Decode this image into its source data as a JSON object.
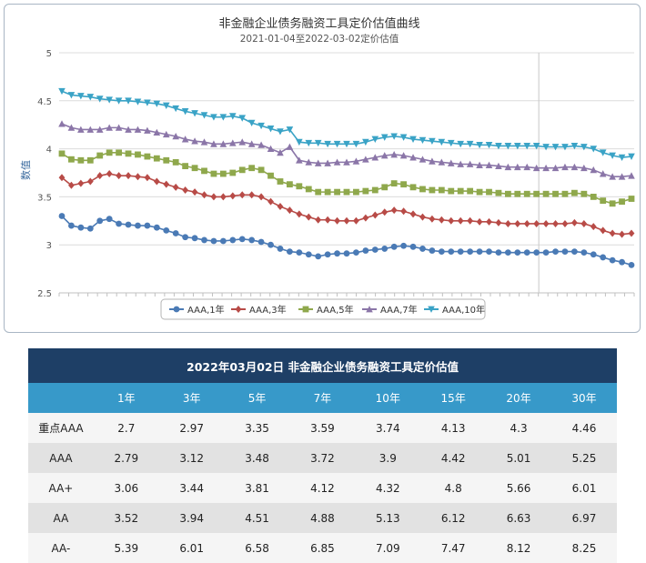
{
  "chart_data": {
    "type": "line",
    "title": "非金融企业债务融资工具定价估值曲线",
    "subtitle": "2021-01-04至2022-03-02定价估值",
    "xlabel": "",
    "ylabel": "数值",
    "ylim": [
      2.5,
      5
    ],
    "yticks": [
      2.5,
      3,
      3.5,
      4,
      4.5,
      5
    ],
    "grid": true,
    "legend": "bottom",
    "x_start": "2021-01-04",
    "x_end": "2022-03-02",
    "x_tick_count": 60,
    "cursor_x": "2021-12-22",
    "series": [
      {
        "name": "AAA,1年",
        "color": "#4a7ab5",
        "marker": "circle",
        "values": [
          3.3,
          3.2,
          3.18,
          3.17,
          3.25,
          3.27,
          3.22,
          3.21,
          3.2,
          3.2,
          3.18,
          3.15,
          3.12,
          3.08,
          3.07,
          3.05,
          3.04,
          3.04,
          3.05,
          3.06,
          3.05,
          3.03,
          3.0,
          2.96,
          2.93,
          2.92,
          2.9,
          2.88,
          2.9,
          2.91,
          2.91,
          2.92,
          2.94,
          2.95,
          2.96,
          2.98,
          2.99,
          2.98,
          2.96,
          2.94,
          2.93,
          2.93,
          2.93,
          2.93,
          2.93,
          2.93,
          2.92,
          2.92,
          2.92,
          2.92,
          2.92,
          2.92,
          2.93,
          2.93,
          2.93,
          2.92,
          2.9,
          2.87,
          2.84,
          2.82,
          2.79
        ]
      },
      {
        "name": "AAA,3年",
        "color": "#b84b47",
        "marker": "diamond",
        "values": [
          3.7,
          3.62,
          3.64,
          3.66,
          3.72,
          3.74,
          3.72,
          3.72,
          3.71,
          3.7,
          3.66,
          3.63,
          3.6,
          3.57,
          3.55,
          3.52,
          3.5,
          3.5,
          3.51,
          3.52,
          3.52,
          3.5,
          3.45,
          3.4,
          3.36,
          3.32,
          3.29,
          3.26,
          3.26,
          3.25,
          3.25,
          3.25,
          3.28,
          3.31,
          3.34,
          3.36,
          3.35,
          3.32,
          3.29,
          3.27,
          3.26,
          3.25,
          3.25,
          3.25,
          3.24,
          3.24,
          3.23,
          3.22,
          3.22,
          3.22,
          3.22,
          3.22,
          3.22,
          3.22,
          3.23,
          3.22,
          3.19,
          3.15,
          3.12,
          3.11,
          3.12
        ]
      },
      {
        "name": "AAA,5年",
        "color": "#8fa84c",
        "marker": "square",
        "values": [
          3.95,
          3.89,
          3.88,
          3.88,
          3.93,
          3.96,
          3.96,
          3.95,
          3.94,
          3.92,
          3.9,
          3.88,
          3.86,
          3.82,
          3.8,
          3.77,
          3.74,
          3.74,
          3.75,
          3.78,
          3.8,
          3.78,
          3.72,
          3.66,
          3.63,
          3.61,
          3.58,
          3.55,
          3.55,
          3.55,
          3.55,
          3.55,
          3.56,
          3.57,
          3.6,
          3.64,
          3.63,
          3.6,
          3.58,
          3.57,
          3.57,
          3.56,
          3.56,
          3.56,
          3.55,
          3.55,
          3.54,
          3.53,
          3.53,
          3.53,
          3.53,
          3.53,
          3.53,
          3.53,
          3.54,
          3.53,
          3.5,
          3.46,
          3.43,
          3.45,
          3.48
        ]
      },
      {
        "name": "AAA,7年",
        "color": "#8b76a8",
        "marker": "triangle",
        "values": [
          4.26,
          4.22,
          4.2,
          4.2,
          4.2,
          4.22,
          4.22,
          4.2,
          4.2,
          4.19,
          4.17,
          4.15,
          4.13,
          4.1,
          4.08,
          4.07,
          4.05,
          4.05,
          4.06,
          4.07,
          4.05,
          4.04,
          4.0,
          3.96,
          4.02,
          3.88,
          3.86,
          3.85,
          3.85,
          3.86,
          3.86,
          3.87,
          3.89,
          3.91,
          3.93,
          3.94,
          3.93,
          3.91,
          3.89,
          3.87,
          3.86,
          3.85,
          3.84,
          3.84,
          3.83,
          3.83,
          3.82,
          3.81,
          3.81,
          3.81,
          3.8,
          3.8,
          3.8,
          3.81,
          3.81,
          3.8,
          3.78,
          3.74,
          3.71,
          3.71,
          3.72
        ]
      },
      {
        "name": "AAA,10年",
        "color": "#3aa3c6",
        "marker": "triangle-down",
        "values": [
          4.6,
          4.56,
          4.55,
          4.54,
          4.52,
          4.51,
          4.5,
          4.5,
          4.49,
          4.48,
          4.47,
          4.45,
          4.42,
          4.39,
          4.37,
          4.35,
          4.33,
          4.33,
          4.34,
          4.32,
          4.27,
          4.24,
          4.21,
          4.18,
          4.2,
          4.07,
          4.06,
          4.06,
          4.05,
          4.05,
          4.05,
          4.05,
          4.07,
          4.1,
          4.12,
          4.13,
          4.12,
          4.1,
          4.09,
          4.08,
          4.07,
          4.06,
          4.05,
          4.05,
          4.04,
          4.04,
          4.03,
          4.03,
          4.03,
          4.03,
          4.03,
          4.02,
          4.02,
          4.02,
          4.03,
          4.02,
          4.0,
          3.96,
          3.93,
          3.91,
          3.92
        ]
      }
    ]
  },
  "table": {
    "title": "2022年03月02日  非金融企业债务融资工具定价估值",
    "headers": [
      "",
      "1年",
      "3年",
      "5年",
      "7年",
      "10年",
      "15年",
      "20年",
      "30年"
    ],
    "rows": [
      [
        "重点AAA",
        "2.7",
        "2.97",
        "3.35",
        "3.59",
        "3.74",
        "4.13",
        "4.3",
        "4.46"
      ],
      [
        "AAA",
        "2.79",
        "3.12",
        "3.48",
        "3.72",
        "3.9",
        "4.42",
        "5.01",
        "5.25"
      ],
      [
        "AA+",
        "3.06",
        "3.44",
        "3.81",
        "4.12",
        "4.32",
        "4.8",
        "5.66",
        "6.01"
      ],
      [
        "AA",
        "3.52",
        "3.94",
        "4.51",
        "4.88",
        "5.13",
        "6.12",
        "6.63",
        "6.97"
      ],
      [
        "AA-",
        "5.39",
        "6.01",
        "6.58",
        "6.85",
        "7.09",
        "7.47",
        "8.12",
        "8.25"
      ]
    ]
  }
}
